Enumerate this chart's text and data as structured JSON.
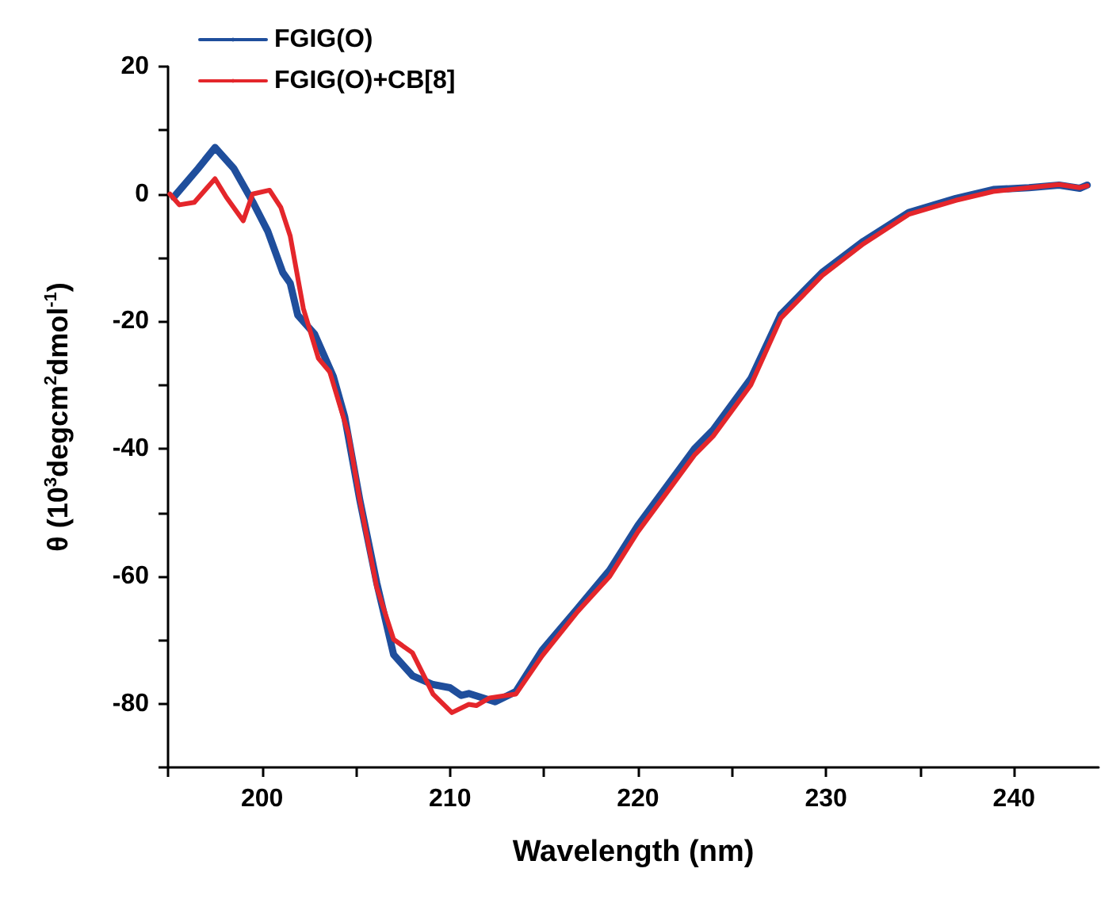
{
  "chart_data": {
    "type": "line",
    "xlabel": "Wavelength (nm)",
    "ylabel": "θ (10$^{3}$degcm$^{2}$dmol$^{-1}$)",
    "xlim": [
      195,
      244.5
    ],
    "ylim": [
      -90,
      20
    ],
    "xticks": [
      {
        "value": 195,
        "label": null
      },
      200,
      {
        "value": 205,
        "label": null
      },
      210,
      {
        "value": 215,
        "label": null
      },
      220,
      {
        "value": 225,
        "label": null
      },
      230,
      {
        "value": 235,
        "label": null
      },
      240
    ],
    "yticks": [
      {
        "value": -90,
        "label": null
      },
      -80,
      {
        "value": -70,
        "label": null
      },
      -60,
      {
        "value": -50,
        "label": null
      },
      -40,
      {
        "value": -30,
        "label": null
      },
      -20,
      {
        "value": -10,
        "label": null
      },
      0,
      {
        "value": 10,
        "label": null
      },
      20
    ],
    "grid": false,
    "legend": "top left",
    "series": [
      {
        "name": "FGIG(O)",
        "color": "#1f4e9c",
        "x": [
          195.3,
          196.6,
          197.5,
          198.5,
          199.5,
          200.3,
          201.1,
          201.5,
          201.9,
          202.8,
          203.8,
          204.4,
          205.2,
          206.1,
          207.0,
          208.0,
          209.1,
          210.0,
          210.6,
          211.0,
          212.4,
          213.5,
          214.9,
          216.8,
          218.5,
          220,
          222,
          223,
          224,
          226,
          227.6,
          229.8,
          232,
          234.4,
          236.9,
          238.9,
          240.8,
          242.4,
          243.5,
          243.9
        ],
        "values": [
          -0.5,
          4,
          7.3,
          4,
          -1.2,
          -5.8,
          -12.3,
          -14,
          -19,
          -22,
          -28.7,
          -35,
          -48,
          -61,
          -72.3,
          -75.6,
          -77,
          -77.5,
          -78.7,
          -78.4,
          -79.7,
          -78.1,
          -71.6,
          -65,
          -59,
          -52,
          -44,
          -40,
          -37,
          -29,
          -18.9,
          -12.3,
          -7.4,
          -2.9,
          -0.7,
          0.7,
          1,
          1.4,
          0.9,
          1.4
        ]
      },
      {
        "name": "FGIG(O)+CB[8]",
        "color": "#e4262b",
        "x": [
          195.1,
          195.6,
          196.4,
          197.5,
          198.1,
          199.0,
          199.5,
          200.4,
          201.0,
          201.5,
          202.2,
          203.0,
          203.6,
          204.6,
          205.2,
          206.1,
          207.0,
          208.0,
          209.1,
          210.1,
          211.0,
          211.4,
          212.1,
          213.5,
          214.9,
          216.8,
          218.5,
          220,
          222,
          223,
          224,
          226,
          227.6,
          229.8,
          232,
          234.4,
          236.9,
          238.9,
          240.8,
          242.4,
          243.5,
          243.9
        ],
        "values": [
          0,
          -1.7,
          -1.3,
          2.4,
          -0.5,
          -4.2,
          0,
          0.6,
          -2.1,
          -6.6,
          -18,
          -25.8,
          -27.9,
          -37.7,
          -48,
          -61.7,
          -69.9,
          -72,
          -78.5,
          -81.4,
          -80.1,
          -80.3,
          -79.1,
          -78.5,
          -72.5,
          -65.5,
          -60,
          -53,
          -45,
          -41,
          -38,
          -30,
          -19.5,
          -12.8,
          -7.8,
          -3.2,
          -1,
          0.4,
          1,
          1.5,
          1,
          1.3
        ]
      }
    ]
  }
}
